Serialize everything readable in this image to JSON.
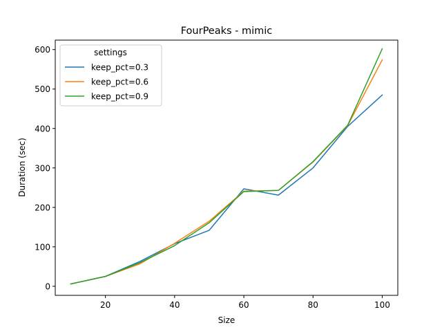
{
  "chart_data": {
    "type": "line",
    "title": "FourPeaks - mimic",
    "xlabel": "Size",
    "ylabel": "Duration (sec)",
    "xlim": [
      5.5,
      104.5
    ],
    "ylim": [
      -23,
      624
    ],
    "xticks": [
      20,
      40,
      60,
      80,
      100
    ],
    "yticks": [
      0,
      100,
      200,
      300,
      400,
      500,
      600
    ],
    "grid": false,
    "legend_title": "settings",
    "legend_position": "upper-left",
    "x": [
      10,
      20,
      30,
      40,
      50,
      60,
      70,
      80,
      90,
      100
    ],
    "series": [
      {
        "name": "keep_pct=0.3",
        "color": "#1f77b4",
        "values": [
          6,
          25,
          63,
          108,
          142,
          247,
          231,
          300,
          405,
          485
        ]
      },
      {
        "name": "keep_pct=0.6",
        "color": "#ff7f0e",
        "values": [
          6,
          25,
          57,
          109,
          165,
          241,
          243,
          315,
          407,
          574
        ]
      },
      {
        "name": "keep_pct=0.9",
        "color": "#2ca02c",
        "values": [
          6,
          25,
          60,
          103,
          161,
          240,
          243,
          316,
          408,
          602
        ]
      }
    ]
  }
}
